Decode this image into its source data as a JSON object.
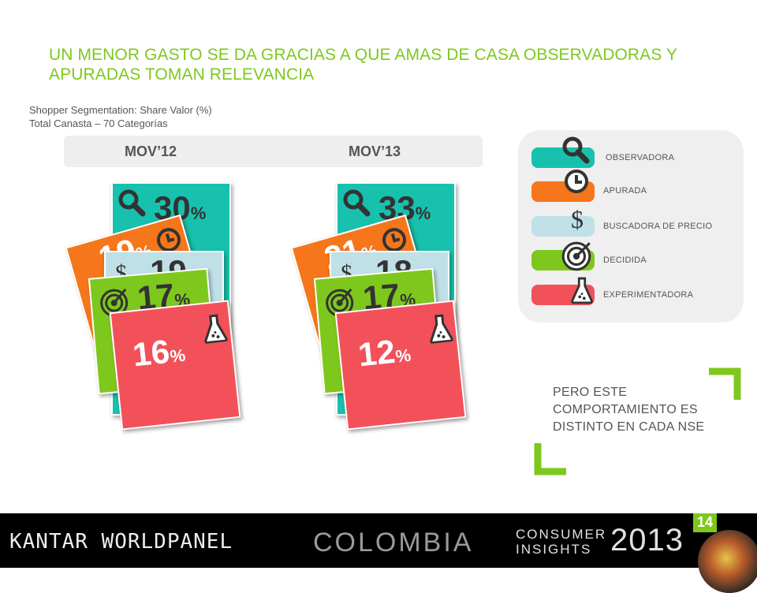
{
  "title": "UN MENOR GASTO SE DA GRACIAS A QUE AMAS DE CASA OBSERVADORAS Y  APURADAS TOMAN RELEVANCIA",
  "subtitle_line1": "Shopper Segmentation: Share Valor (%)",
  "subtitle_line2": "Total Canasta – 70 Categorías",
  "periods": [
    "MOV’12",
    "MOV’13"
  ],
  "colors": {
    "observadora": "#17c1ad",
    "apurada": "#f5761b",
    "buscadora": "#bfe0e6",
    "decidida": "#7ec81d",
    "experimentadora": "#f25159",
    "accent": "#7ec81d"
  },
  "chart_data": {
    "type": "table",
    "categories": [
      "OBSERVADORA",
      "APURADA",
      "BUSCADORA DE PRECIO",
      "DECIDIDA",
      "EXPERIMENTADORA"
    ],
    "series": [
      {
        "name": "MOV’12",
        "values": [
          30,
          19,
          19,
          17,
          16
        ]
      },
      {
        "name": "MOV’13",
        "values": [
          33,
          21,
          18,
          17,
          12
        ]
      }
    ],
    "unit": "%"
  },
  "cards": {
    "mov12": {
      "observadora": "30",
      "apurada": "19",
      "buscadora": "19",
      "decidida": "17",
      "experimentadora": "16"
    },
    "mov13": {
      "observadora": "33",
      "apurada": "21",
      "buscadora": "18",
      "decidida": "17",
      "experimentadora": "12"
    },
    "percent_sign": "%",
    "dollar_sign": "$"
  },
  "legend": [
    {
      "label": "OBSERVADORA",
      "icon": "search-icon"
    },
    {
      "label": "APURADA",
      "icon": "clock-icon"
    },
    {
      "label": "BUSCADORA DE PRECIO",
      "icon": "dollar-icon"
    },
    {
      "label": "DECIDIDA",
      "icon": "target-icon"
    },
    {
      "label": "EXPERIMENTADORA",
      "icon": "flask-icon"
    }
  ],
  "note": "PERO ESTE COMPORTAMIENTO ES DISTINTO EN CADA NSE",
  "footer": {
    "brand": "KANTAR WORLDPANEL",
    "country": "COLOMBIA",
    "ci_line1": "CONSUMER",
    "ci_line2": "INSIGHTS",
    "year": "2013",
    "page_number": "14"
  }
}
